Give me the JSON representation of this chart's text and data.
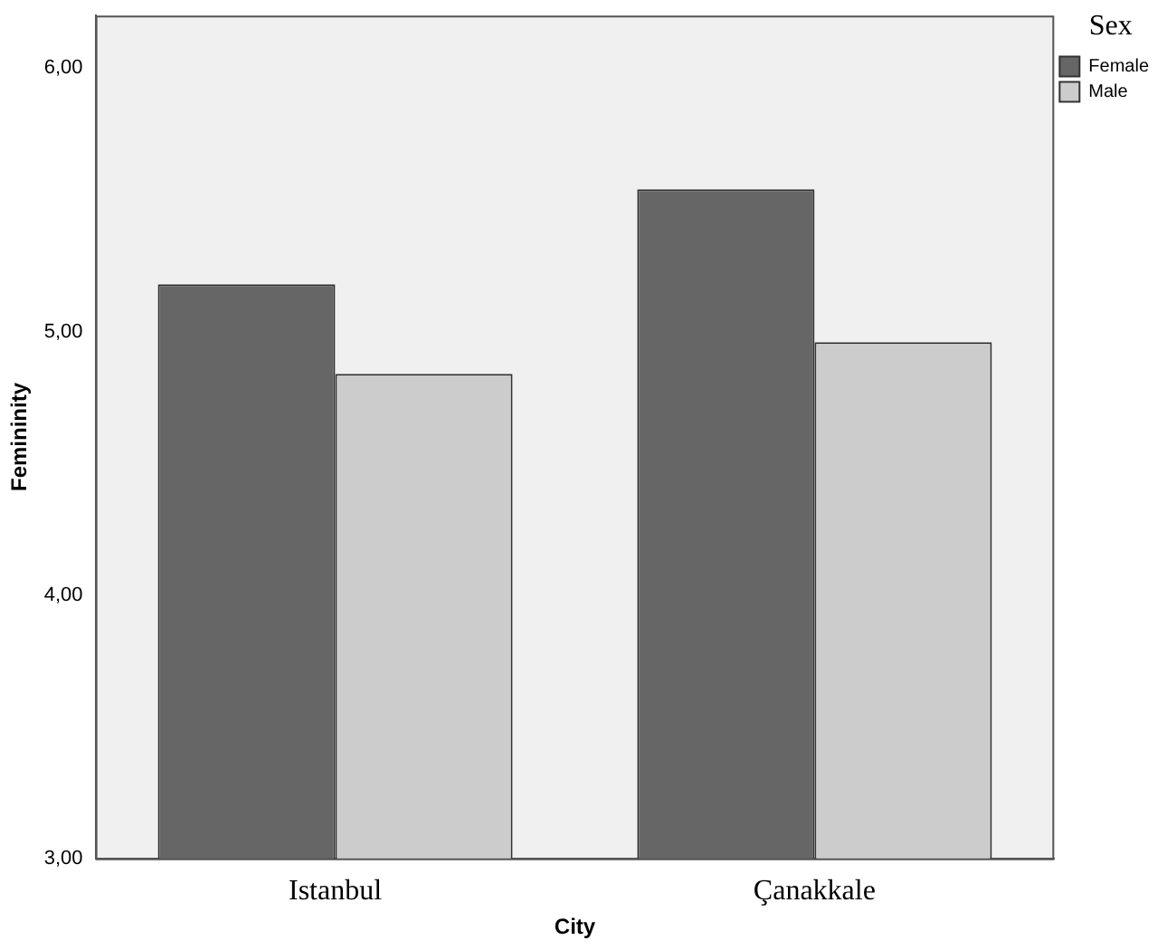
{
  "chart_data": {
    "type": "bar",
    "xlabel": "City",
    "ylabel": "Femininity",
    "legend_title": "Sex",
    "categories": [
      "Istanbul",
      "Çanakkale"
    ],
    "series": [
      {
        "name": "Female",
        "color": "#666666",
        "values": [
          5.18,
          5.54
        ]
      },
      {
        "name": "Male",
        "color": "#cccccc",
        "values": [
          4.84,
          4.96
        ]
      }
    ],
    "ylim": [
      3,
      6.2
    ],
    "yticks": [
      {
        "value": 3,
        "label": "3,00"
      },
      {
        "value": 4,
        "label": "4,00"
      },
      {
        "value": 5,
        "label": "5,00"
      },
      {
        "value": 6,
        "label": "6,00"
      }
    ],
    "grid": false,
    "legend": "top right"
  }
}
